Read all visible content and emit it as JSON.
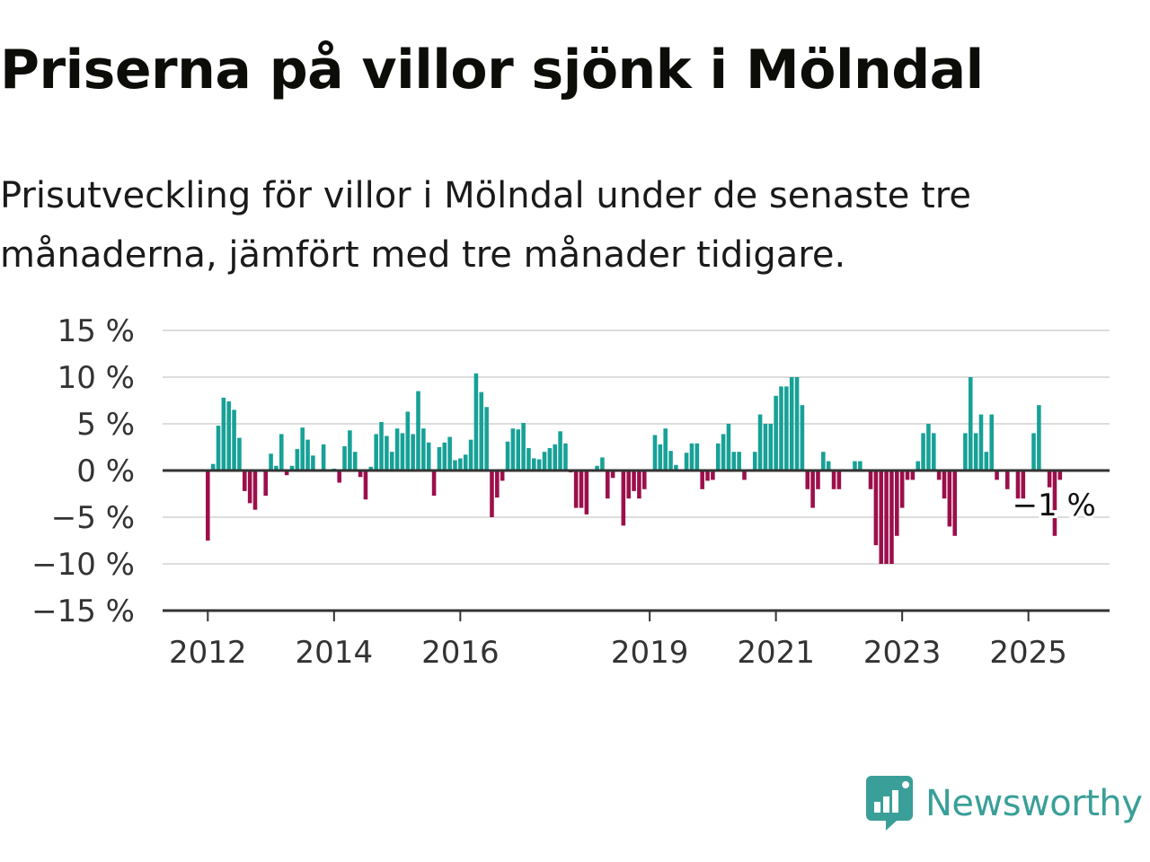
{
  "title": "Priserna på villor sjönk i Mölndal",
  "subtitle": "Prisutveckling för villor i Mölndal under de senaste tre månaderna, jämfört med tre månader tidigare.",
  "brand": {
    "name": "Newsworthy",
    "icon": "newsworthy-logo-icon"
  },
  "colors": {
    "positive": "#17a197",
    "negative": "#9c0f4b",
    "grid": "#dddddd",
    "axis": "#333333",
    "brand": "#3a9f98"
  },
  "chart_data": {
    "type": "bar",
    "title": "Priserna på villor sjönk i Mölndal",
    "xlabel": "",
    "ylabel": "",
    "x_start": "2012-01",
    "frequency": "monthly",
    "ylim": [
      -15,
      15
    ],
    "yticks": [
      15,
      10,
      5,
      0,
      -5,
      -10,
      -15
    ],
    "ytick_labels": [
      "15 %",
      "10 %",
      "5 %",
      "0 %",
      "−5 %",
      "−10 %",
      "−15 %"
    ],
    "xticks": [
      "2012",
      "2014",
      "2016",
      "2019",
      "2021",
      "2023",
      "2025"
    ],
    "grid": true,
    "annotation": {
      "text": "−1 %",
      "target": "last"
    },
    "series": [
      {
        "unit": "%",
        "values": [
          -7.5,
          0.7,
          4.8,
          7.8,
          7.4,
          6.5,
          3.5,
          -2.2,
          -3.5,
          -4.2,
          -0.1,
          -2.7,
          1.8,
          0.5,
          3.9,
          -0.5,
          0.5,
          2.3,
          4.6,
          3.3,
          1.6,
          0.1,
          2.8,
          0.0,
          0.2,
          -1.3,
          2.6,
          4.3,
          2.0,
          -0.7,
          -3.1,
          0.4,
          3.9,
          5.2,
          3.7,
          2.0,
          4.5,
          4.0,
          6.3,
          3.9,
          8.5,
          4.5,
          3.0,
          -2.7,
          2.5,
          3.0,
          3.6,
          1.1,
          1.3,
          1.7,
          3.3,
          10.4,
          8.4,
          6.8,
          -5.0,
          -2.9,
          -1.1,
          3.1,
          4.5,
          4.4,
          5.1,
          2.4,
          1.3,
          1.2,
          2.0,
          2.4,
          2.8,
          4.2,
          2.9,
          -0.2,
          -4.0,
          -4.0,
          -4.7,
          -0.1,
          0.5,
          1.4,
          -3.0,
          -0.8,
          0.0,
          -5.9,
          -3.0,
          -2.2,
          -3.0,
          -2.0,
          0.0,
          3.8,
          2.8,
          4.5,
          2.1,
          0.6,
          0.0,
          1.9,
          2.9,
          2.9,
          -2.0,
          -1.1,
          -1.0,
          2.9,
          3.9,
          5.0,
          2.0,
          2.0,
          -1.0,
          0.0,
          2.0,
          6.0,
          5.0,
          5.0,
          8.0,
          9.0,
          9.0,
          10.0,
          10.0,
          7.0,
          -2.0,
          -4.0,
          -2.0,
          2.0,
          1.0,
          -2.0,
          -2.0,
          0.0,
          0.0,
          1.0,
          1.0,
          0.0,
          -2.0,
          -8.0,
          -10.0,
          -10.0,
          -10.0,
          -7.0,
          -4.0,
          -1.0,
          -1.0,
          1.0,
          4.0,
          5.0,
          4.0,
          -1.0,
          -3.0,
          -6.0,
          -7.0,
          0.0,
          4.0,
          10.0,
          4.0,
          6.0,
          2.0,
          6.0,
          -1.0,
          0.0,
          -2.0,
          0.0,
          -3.0,
          -3.0,
          0.0,
          4.0,
          7.0,
          0.0,
          -1.8,
          -7.0,
          -1.0
        ]
      }
    ]
  }
}
